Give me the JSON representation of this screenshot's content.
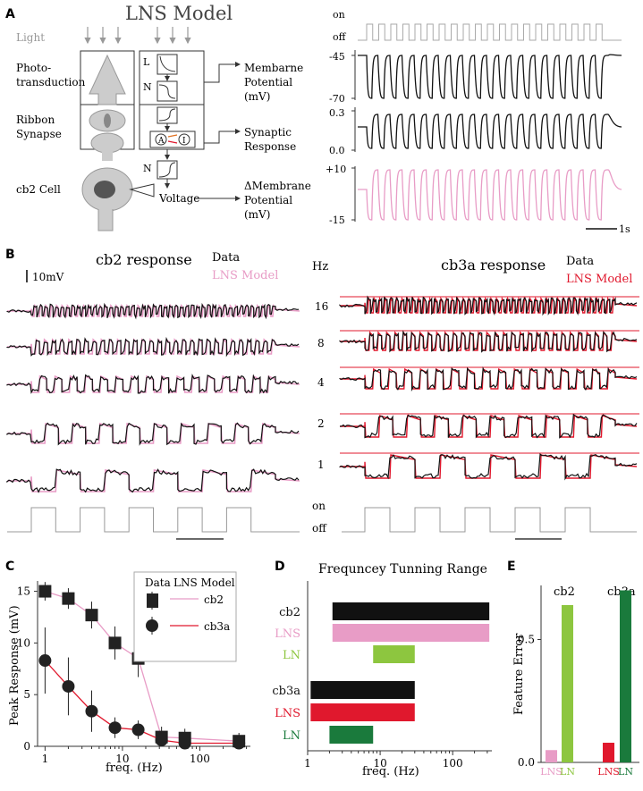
{
  "colors": {
    "black": "#111111",
    "pink": "#e89cc6",
    "red": "#e0182d",
    "green_light": "#8dc63f",
    "green_dark": "#1a7a3c",
    "gray": "#999999"
  },
  "panelA": {
    "label": "A",
    "title": "LNS Model",
    "light_label": "Light",
    "rows": [
      "Photo-\ntransduction",
      "Ribbon\nSynapse",
      "cb2 Cell"
    ],
    "row_lines": {
      "photo": [
        "Photo-",
        "transduction"
      ],
      "ribbon": [
        "Ribbon",
        "Synapse"
      ],
      "cell": "cb2 Cell"
    },
    "box_letters": {
      "L": "L",
      "N1": "N",
      "A": "A",
      "I": "I",
      "N2": "N"
    },
    "voltage_label": "Voltage",
    "outputs": {
      "membrane": [
        "Membarne",
        "Potential",
        "(mV)"
      ],
      "synaptic": [
        "Synaptic",
        "Response"
      ],
      "delta": [
        "ΔMembrane",
        "Potential",
        "(mV)"
      ]
    },
    "stim_on": "on",
    "stim_off": "off",
    "ticks": {
      "m_top": "-45",
      "m_bot": "-70",
      "s_top": "0.3",
      "s_bot": "0.0",
      "d_top": "+10",
      "d_bot": "-15"
    },
    "scale_label": "1s"
  },
  "panelB": {
    "label": "B",
    "cb2_title": "cb2 response",
    "cb3a_title": "cb3a response",
    "legend_data": "Data",
    "legend_model": "LNS Model",
    "scale_label": "10mV",
    "hz_header": "Hz",
    "frequencies": [
      "16",
      "8",
      "4",
      "2",
      "1"
    ],
    "stim_on": "on",
    "stim_off": "off"
  },
  "panelC": {
    "label": "C",
    "legend_header_data": "Data",
    "legend_header_model": "LNS Model",
    "legend_cb2": "cb2",
    "legend_cb3a": "cb3a",
    "chart_data": {
      "type": "scatter",
      "xlabel": "freq. (Hz)",
      "ylabel": "Peak Response (mV)",
      "xscale": "log",
      "xlim": [
        0.8,
        450
      ],
      "ylim": [
        0,
        16
      ],
      "xticks": [
        "1",
        "10",
        "100"
      ],
      "yticks": [
        "0",
        "5",
        "10",
        "15"
      ],
      "series": [
        {
          "name": "cb2",
          "marker": "square",
          "model_color": "#e89cc6",
          "x": [
            1,
            2,
            4,
            8,
            16,
            32,
            64,
            320
          ],
          "y": [
            15,
            14.3,
            12.7,
            10,
            8.5,
            0.9,
            0.8,
            0.5
          ],
          "err": [
            0.9,
            1.0,
            1.3,
            1.6,
            1.8,
            1.0,
            0.9,
            0.8
          ]
        },
        {
          "name": "cb3a",
          "marker": "circle",
          "model_color": "#e0182d",
          "x": [
            1,
            2,
            4,
            8,
            16,
            32,
            64,
            320
          ],
          "y": [
            8.3,
            5.8,
            3.4,
            1.8,
            1.6,
            0.6,
            0.3,
            0.3
          ],
          "err": [
            3.2,
            2.8,
            2.0,
            1.0,
            0.9,
            0.6,
            0.5,
            0.5
          ]
        }
      ]
    }
  },
  "panelD": {
    "label": "D",
    "chart_data": {
      "type": "bar",
      "orientation": "horizontal-range",
      "title": "Frequncey Tunning Range",
      "xlabel": "freq. (Hz)",
      "xscale": "log",
      "xlim": [
        1,
        400
      ],
      "xticks": [
        "1",
        "10",
        "100"
      ],
      "categories": [
        "cb2",
        "LNS",
        "LN",
        "cb3a",
        "LNS",
        "LN"
      ],
      "ranges": [
        [
          2.2,
          320
        ],
        [
          2.2,
          320
        ],
        [
          8,
          30
        ],
        [
          1.1,
          30
        ],
        [
          1.1,
          30
        ],
        [
          2,
          8
        ]
      ],
      "colors": [
        "#111111",
        "#e89cc6",
        "#8dc63f",
        "#111111",
        "#e0182d",
        "#1a7a3c"
      ]
    }
  },
  "panelE": {
    "label": "E",
    "chart_data": {
      "type": "bar",
      "ylabel": "Feature Error",
      "ylim": [
        0,
        0.72
      ],
      "yticks": [
        "0.0",
        "0.5"
      ],
      "groups": [
        "cb2",
        "cb3a"
      ],
      "categories": [
        "LNS",
        "LN",
        "LNS",
        "LN"
      ],
      "values": [
        0.05,
        0.64,
        0.08,
        0.7
      ],
      "colors": [
        "#e89cc6",
        "#8dc63f",
        "#e0182d",
        "#1a7a3c"
      ]
    }
  }
}
